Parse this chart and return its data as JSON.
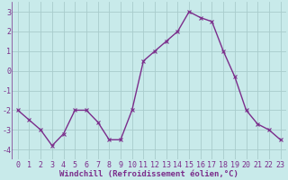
{
  "x": [
    0,
    1,
    2,
    3,
    4,
    5,
    6,
    7,
    8,
    9,
    10,
    11,
    12,
    13,
    14,
    15,
    16,
    17,
    18,
    19,
    20,
    21,
    22,
    23
  ],
  "y": [
    -2.0,
    -2.5,
    -3.0,
    -3.8,
    -3.2,
    -2.0,
    -2.0,
    -2.6,
    -3.5,
    -3.5,
    -2.0,
    0.5,
    1.0,
    1.5,
    2.0,
    3.0,
    2.7,
    2.5,
    1.0,
    -0.3,
    -2.0,
    -2.7,
    -3.0,
    -3.5
  ],
  "line_color": "#7b2d8b",
  "marker": "x",
  "marker_color": "#7b2d8b",
  "bg_color": "#c8eaea",
  "grid_color": "#a8cccc",
  "xlabel": "Windchill (Refroidissement éolien,°C)",
  "xlim": [
    -0.5,
    23.5
  ],
  "ylim": [
    -4.5,
    3.5
  ],
  "yticks": [
    -4,
    -3,
    -2,
    -1,
    0,
    1,
    2,
    3
  ],
  "xtick_labels": [
    "0",
    "1",
    "2",
    "3",
    "4",
    "5",
    "6",
    "7",
    "8",
    "9",
    "10",
    "11",
    "12",
    "13",
    "14",
    "15",
    "16",
    "17",
    "18",
    "19",
    "20",
    "21",
    "22",
    "23"
  ],
  "xlabel_fontsize": 6.5,
  "tick_fontsize": 6,
  "line_width": 1.0,
  "marker_size": 3
}
